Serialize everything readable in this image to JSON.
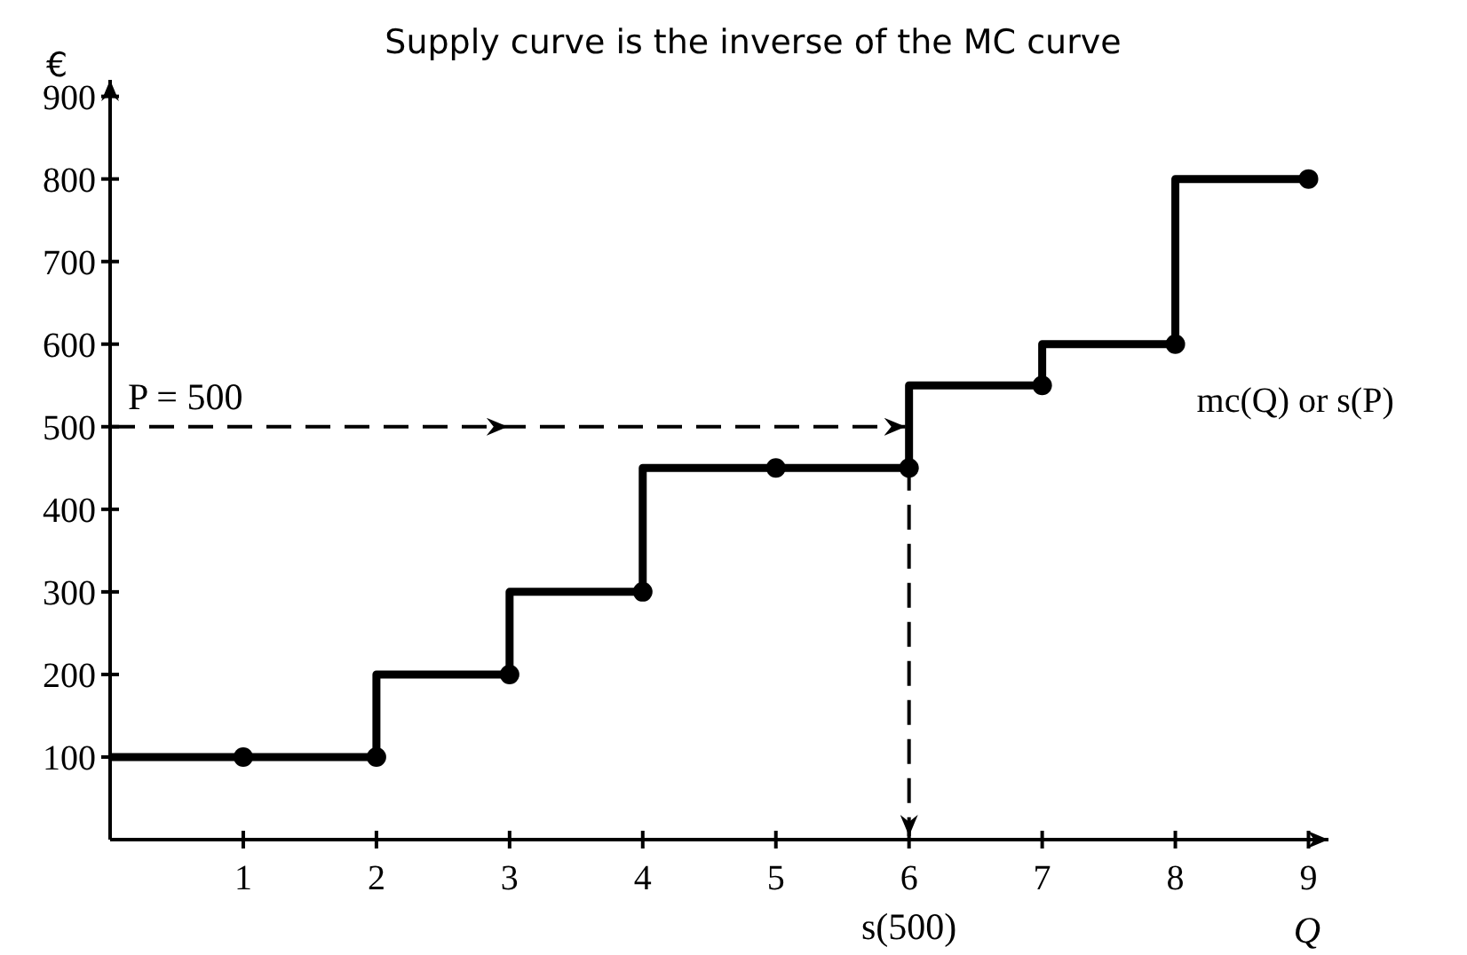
{
  "chart_data": {
    "type": "step",
    "title": "Supply curve is the inverse of the MC curve",
    "xlabel": "Q",
    "ylabel": "€",
    "x": [
      0,
      1,
      2,
      3,
      4,
      5,
      6,
      7,
      8,
      9
    ],
    "series": [
      {
        "name": "mc(Q) or s(P)",
        "color": "#000000",
        "values": [
          100,
          100,
          100,
          200,
          300,
          450,
          450,
          550,
          600,
          800
        ]
      }
    ],
    "xlim": [
      0,
      9.15
    ],
    "xticks": [
      1,
      2,
      3,
      4,
      5,
      6,
      7,
      8,
      9
    ],
    "ylim": [
      0,
      920
    ],
    "yticks": [
      100,
      200,
      300,
      400,
      500,
      600,
      700,
      800,
      900
    ],
    "marker": "circle",
    "line_style": "solid",
    "ref_lines": [
      {
        "axis": "y",
        "value": 500,
        "label": "P = 500",
        "line_style": "dashed",
        "color": "#000000"
      },
      {
        "axis": "x",
        "value": 6,
        "label": "s(500)",
        "line_style": "dashed",
        "color": "#000000"
      }
    ]
  }
}
